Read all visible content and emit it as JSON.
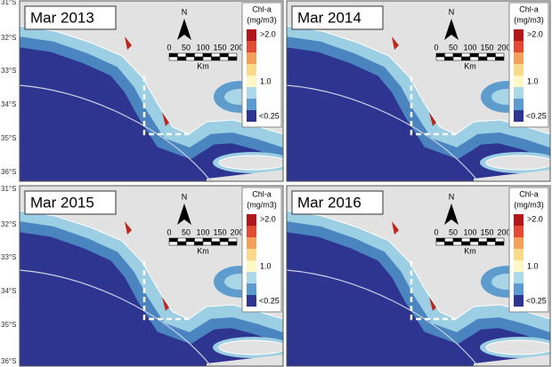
{
  "latitude_labels": {
    "top": [
      "31°S",
      "32°S",
      "33°S",
      "34°S",
      "35°S",
      "36°S"
    ],
    "bottom": [
      "31°S",
      "32°S",
      "33°S",
      "34°S",
      "35°S",
      "36°S"
    ]
  },
  "panels": [
    {
      "title": "Mar 2013",
      "north": "N",
      "scale": [
        "0",
        "50",
        "100",
        "150",
        "200"
      ],
      "scale_unit": "Km",
      "legend": {
        "title": [
          "Chl-a",
          "(mg/m3)"
        ],
        "high": ">2.0",
        "mid": "1.0",
        "low": "<0.25"
      }
    },
    {
      "title": "Mar 2014",
      "north": "N",
      "scale": [
        "0",
        "50",
        "100",
        "150",
        "200"
      ],
      "scale_unit": "Km",
      "legend": {
        "title": [
          "Chl-a",
          "(mg/m3)"
        ],
        "high": ">2.0",
        "mid": "1.0",
        "low": "<0.25"
      }
    },
    {
      "title": "Mar 2015",
      "north": "N",
      "scale": [
        "0",
        "50",
        "100",
        "150",
        "200"
      ],
      "scale_unit": "Km",
      "legend": {
        "title": [
          "Chl-a",
          "(mg/m3)"
        ],
        "high": ">2.0",
        "mid": "1.0",
        "low": "<0.25"
      }
    },
    {
      "title": "Mar 2016",
      "north": "N",
      "scale": [
        "0",
        "50",
        "100",
        "150",
        "200"
      ],
      "scale_unit": "Km",
      "legend": {
        "title": [
          "Chl-a",
          "(mg/m3)"
        ],
        "high": ">2.0",
        "mid": "1.0",
        "low": "<0.25"
      }
    }
  ]
}
